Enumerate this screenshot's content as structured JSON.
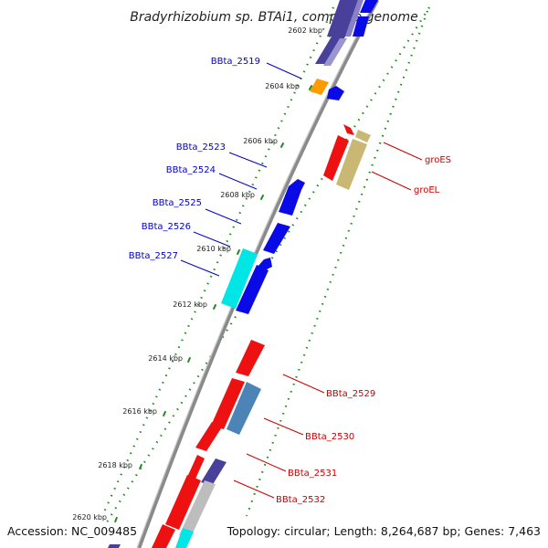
{
  "title": "Bradyrhizobium sp. BTAi1, complete genome",
  "accession": "Accession: NC_009485",
  "summary": "Topology: circular; Length: 8,264,687 bp; Genes: 7,463",
  "colors": {
    "backbone": "#8a8a8a",
    "tick_green": "#1e8a1e",
    "label_blue": "#0000cc",
    "label_red": "#cc0000",
    "gene_blue": "#0a0ae6",
    "gene_darkblue": "#48409a",
    "gene_cyan": "#00e6e6",
    "gene_red": "#ee1111",
    "gene_khaki": "#c8b873",
    "gene_orange": "#ff9900",
    "gene_steel": "#4c84b8",
    "gene_grey": "#bdbdbd"
  },
  "kbp_ticks": [
    "2602 kbp",
    "2604 kbp",
    "2606 kbp",
    "2608 kbp",
    "2610 kbp",
    "2612 kbp",
    "2614 kbp",
    "2616 kbp",
    "2618 kbp",
    "2620 kbp"
  ],
  "left_labels": [
    "BBta_2519",
    "BBta_2523",
    "BBta_2524",
    "BBta_2525",
    "BBta_2526",
    "BBta_2527"
  ],
  "right_labels": [
    "groES",
    "groEL",
    "BBta_2529",
    "BBta_2530",
    "BBta_2531",
    "BBta_2532"
  ]
}
